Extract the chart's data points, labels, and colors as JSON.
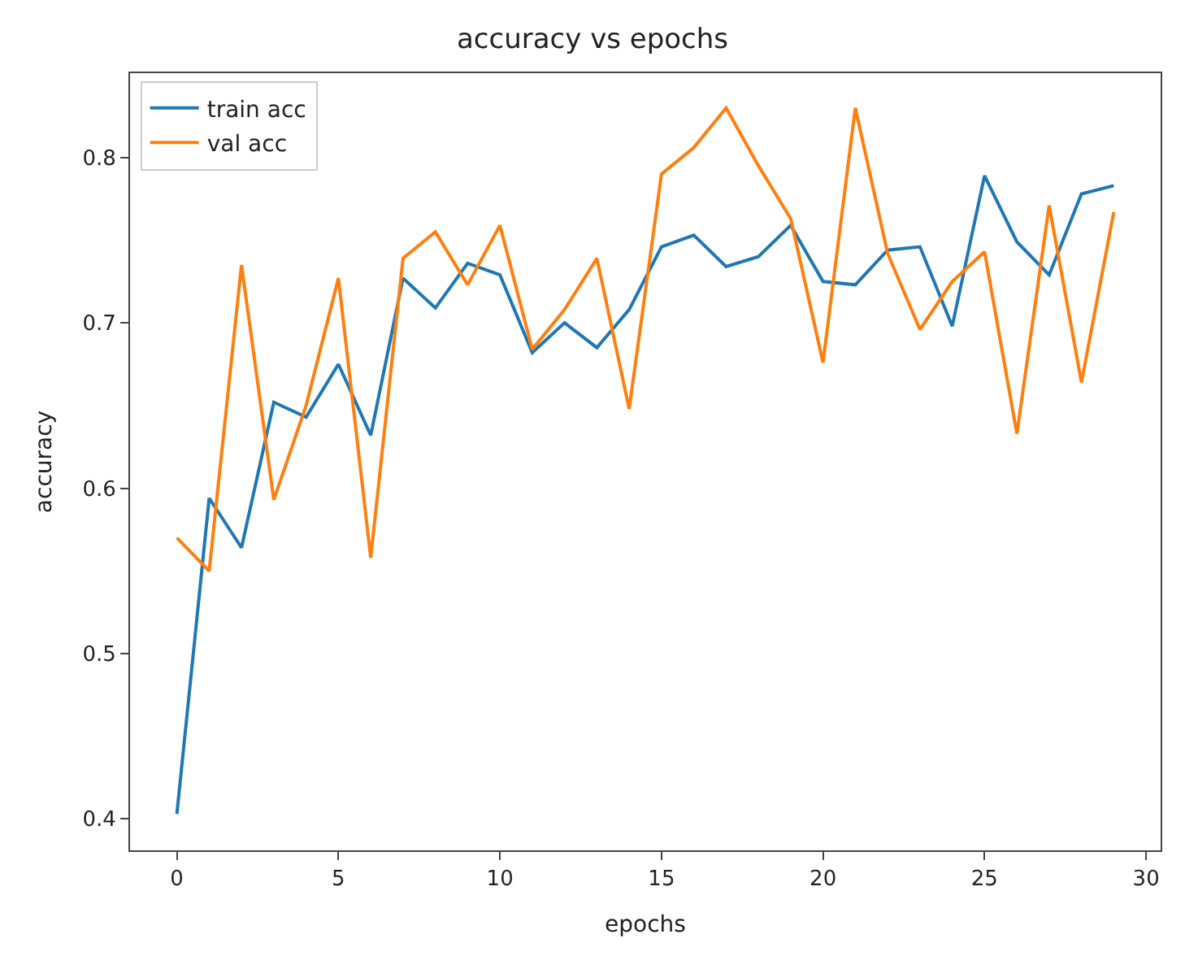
{
  "chart_data": {
    "type": "line",
    "title": "accuracy vs epochs",
    "xlabel": "epochs",
    "ylabel": "accuracy",
    "x": [
      0,
      1,
      2,
      3,
      4,
      5,
      6,
      7,
      8,
      9,
      10,
      11,
      12,
      13,
      14,
      15,
      16,
      17,
      18,
      19,
      20,
      21,
      22,
      23,
      24,
      25,
      26,
      27,
      28,
      29
    ],
    "series": [
      {
        "name": "train acc",
        "color": "#1f77b4",
        "values": [
          0.403,
          0.594,
          0.564,
          0.652,
          0.643,
          0.675,
          0.632,
          0.727,
          0.709,
          0.736,
          0.729,
          0.682,
          0.7,
          0.685,
          0.708,
          0.746,
          0.753,
          0.734,
          0.74,
          0.759,
          0.725,
          0.723,
          0.744,
          0.746,
          0.698,
          0.789,
          0.749,
          0.729,
          0.778,
          0.783
        ]
      },
      {
        "name": "val acc",
        "color": "#ff7f0e",
        "values": [
          0.57,
          0.55,
          0.735,
          0.593,
          0.65,
          0.727,
          0.558,
          0.739,
          0.755,
          0.723,
          0.759,
          0.684,
          0.708,
          0.739,
          0.648,
          0.79,
          0.806,
          0.83,
          0.795,
          0.763,
          0.676,
          0.83,
          0.742,
          0.696,
          0.725,
          0.743,
          0.633,
          0.771,
          0.664,
          0.767
        ]
      }
    ],
    "xlim": [
      -1.45,
      30.45
    ],
    "ylim": [
      0.381,
      0.851
    ],
    "xticks": [
      0,
      5,
      10,
      15,
      20,
      25,
      30
    ],
    "yticks": [
      {
        "value": 0.4,
        "label": "0.4"
      },
      {
        "value": 0.5,
        "label": "0.5"
      },
      {
        "value": 0.6,
        "label": "0.6"
      },
      {
        "value": 0.7,
        "label": "0.7"
      },
      {
        "value": 0.8,
        "label": "0.8"
      }
    ],
    "legend": "top left",
    "marker": "none",
    "line_style": "solid"
  }
}
